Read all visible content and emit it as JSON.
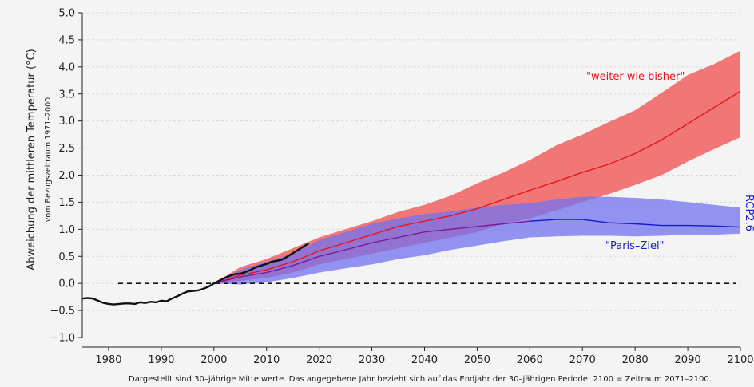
{
  "chart_data": {
    "type": "line",
    "title": "",
    "ylabel": "Abweichung der mittleren Temperatur (°C)",
    "ylabel_sub": "vom Bezugszeitraum 1971–2000",
    "footnote": "Dargestellt sind 30–jährige Mittelwerte. Das angegebene Jahr bezieht sich auf das Endjahr der 30–jährigen Periode: 2100 = Zeitraum 2071–2100.",
    "xlim": [
      1975,
      2100
    ],
    "ylim": [
      -1.0,
      5.0
    ],
    "xticks": [
      "1980",
      "1990",
      "2000",
      "2010",
      "2020",
      "2030",
      "2040",
      "2050",
      "2060",
      "2070",
      "2080",
      "2090",
      "2100"
    ],
    "yticks": [
      "5.0",
      "4.5",
      "4.0",
      "3.5",
      "3.0",
      "2.5",
      "2.0",
      "1.5",
      "1.0",
      "0.5",
      "0.0",
      "−0.5",
      "−1.0"
    ],
    "ytick_values": [
      5.0,
      4.5,
      4.0,
      3.5,
      3.0,
      2.5,
      2.0,
      1.5,
      1.0,
      0.5,
      0.0,
      -0.5,
      -1.0
    ],
    "xtick_values": [
      1980,
      1990,
      2000,
      2010,
      2020,
      2030,
      2040,
      2050,
      2060,
      2070,
      2080,
      2090,
      2100
    ],
    "grid": true,
    "reference_line": 0.0,
    "annotations": {
      "rcp85": "\"weiter wie bisher\"",
      "rcp26": "\"Paris–Ziel\"",
      "rcp26_edge": "RCP2.6"
    },
    "colors": {
      "observed": "#111111",
      "rcp85_line": "#e8141a",
      "rcp85_band": "#f07070",
      "rcp26_line": "#1a1ad0",
      "rcp26_band": "#7272f0",
      "overlap_line": "#7a1a9a",
      "grid": "#d8d8d8",
      "background": "#f4f4f4"
    },
    "series": [
      {
        "key": "observed",
        "x": [
          1975,
          1976,
          1977,
          1978,
          1979,
          1980,
          1981,
          1982,
          1983,
          1984,
          1985,
          1986,
          1987,
          1988,
          1989,
          1990,
          1991,
          1992,
          1993,
          1994,
          1995,
          1996,
          1997,
          1998,
          1999,
          2000,
          2001,
          2002,
          2003,
          2004,
          2005,
          2006,
          2007,
          2008,
          2009,
          2010,
          2011,
          2012,
          2013,
          2014,
          2015,
          2016,
          2017,
          2018
        ],
        "values": [
          -0.28,
          -0.27,
          -0.28,
          -0.32,
          -0.36,
          -0.38,
          -0.39,
          -0.38,
          -0.37,
          -0.37,
          -0.38,
          -0.35,
          -0.36,
          -0.34,
          -0.35,
          -0.32,
          -0.33,
          -0.28,
          -0.24,
          -0.19,
          -0.15,
          -0.14,
          -0.13,
          -0.1,
          -0.06,
          0.0,
          0.05,
          0.1,
          0.14,
          0.17,
          0.18,
          0.21,
          0.25,
          0.3,
          0.33,
          0.36,
          0.4,
          0.42,
          0.44,
          0.5,
          0.56,
          0.62,
          0.68,
          0.74
        ]
      },
      {
        "key": "rcp85",
        "x": [
          2000,
          2005,
          2010,
          2015,
          2020,
          2025,
          2030,
          2035,
          2040,
          2045,
          2050,
          2055,
          2060,
          2065,
          2070,
          2075,
          2080,
          2085,
          2090,
          2095,
          2100
        ],
        "values": [
          0.0,
          0.15,
          0.25,
          0.4,
          0.6,
          0.75,
          0.9,
          1.05,
          1.15,
          1.25,
          1.38,
          1.55,
          1.72,
          1.88,
          2.05,
          2.2,
          2.4,
          2.65,
          2.95,
          3.25,
          3.55
        ],
        "lower": [
          0.0,
          0.05,
          0.1,
          0.2,
          0.35,
          0.45,
          0.55,
          0.65,
          0.75,
          0.85,
          0.95,
          1.1,
          1.2,
          1.35,
          1.5,
          1.65,
          1.82,
          2.0,
          2.25,
          2.48,
          2.7
        ],
        "upper": [
          0.0,
          0.3,
          0.45,
          0.65,
          0.85,
          1.0,
          1.15,
          1.32,
          1.45,
          1.62,
          1.85,
          2.05,
          2.28,
          2.55,
          2.75,
          2.98,
          3.2,
          3.52,
          3.85,
          4.05,
          4.3
        ]
      },
      {
        "key": "rcp26",
        "x": [
          2000,
          2005,
          2010,
          2015,
          2020,
          2025,
          2030,
          2035,
          2040,
          2045,
          2050,
          2055,
          2060,
          2065,
          2070,
          2075,
          2080,
          2085,
          2090,
          2095,
          2100
        ],
        "values": [
          0.0,
          0.12,
          0.2,
          0.33,
          0.5,
          0.62,
          0.75,
          0.85,
          0.95,
          1.0,
          1.05,
          1.1,
          1.15,
          1.18,
          1.18,
          1.12,
          1.1,
          1.07,
          1.07,
          1.06,
          1.04
        ],
        "lower": [
          0.0,
          -0.02,
          0.02,
          0.1,
          0.2,
          0.28,
          0.35,
          0.45,
          0.52,
          0.62,
          0.7,
          0.78,
          0.85,
          0.87,
          0.88,
          0.88,
          0.87,
          0.88,
          0.9,
          0.9,
          0.92
        ],
        "upper": [
          0.0,
          0.25,
          0.4,
          0.55,
          0.8,
          0.95,
          1.1,
          1.2,
          1.28,
          1.33,
          1.4,
          1.45,
          1.48,
          1.55,
          1.6,
          1.6,
          1.58,
          1.55,
          1.5,
          1.45,
          1.4
        ]
      }
    ]
  }
}
